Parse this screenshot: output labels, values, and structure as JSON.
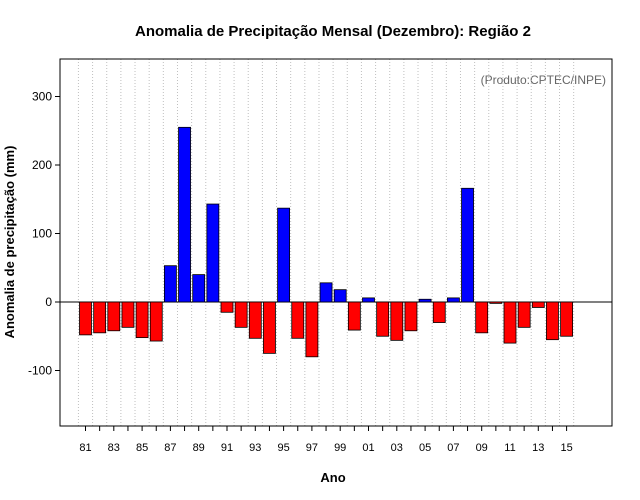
{
  "chart_data": {
    "type": "bar",
    "title": "Anomalia de Precipitação Mensal (Dezembro): Região 2",
    "xlabel": "Ano",
    "ylabel": "Anomalia de precipitação (mm)",
    "credit": "(Produto:CPTEC/INPE)",
    "ylim": [
      -180,
      355
    ],
    "yticks": [
      -100,
      0,
      100,
      200,
      300
    ],
    "grid": "vertical dotted",
    "categories": [
      "81",
      "82",
      "83",
      "84",
      "85",
      "86",
      "87",
      "88",
      "89",
      "90",
      "91",
      "92",
      "93",
      "94",
      "95",
      "96",
      "97",
      "98",
      "99",
      "00",
      "01",
      "02",
      "03",
      "04",
      "05",
      "06",
      "07",
      "08",
      "09",
      "10",
      "11",
      "12",
      "13",
      "14",
      "15"
    ],
    "xtick_labels": [
      "81",
      "83",
      "85",
      "87",
      "89",
      "91",
      "93",
      "95",
      "97",
      "99",
      "01",
      "03",
      "05",
      "07",
      "09",
      "11",
      "13",
      "15"
    ],
    "values": [
      -48,
      -45,
      -42,
      -37,
      -52,
      -57,
      53,
      255,
      40,
      143,
      -15,
      -37,
      -53,
      -75,
      137,
      -53,
      -80,
      28,
      18,
      -41,
      6,
      -50,
      -56,
      -42,
      4,
      -30,
      6,
      166,
      -45,
      -2,
      -60,
      -37,
      -8,
      -55,
      -50
    ],
    "colors": {
      "positive": "#0000ff",
      "negative": "#ff0000"
    }
  }
}
